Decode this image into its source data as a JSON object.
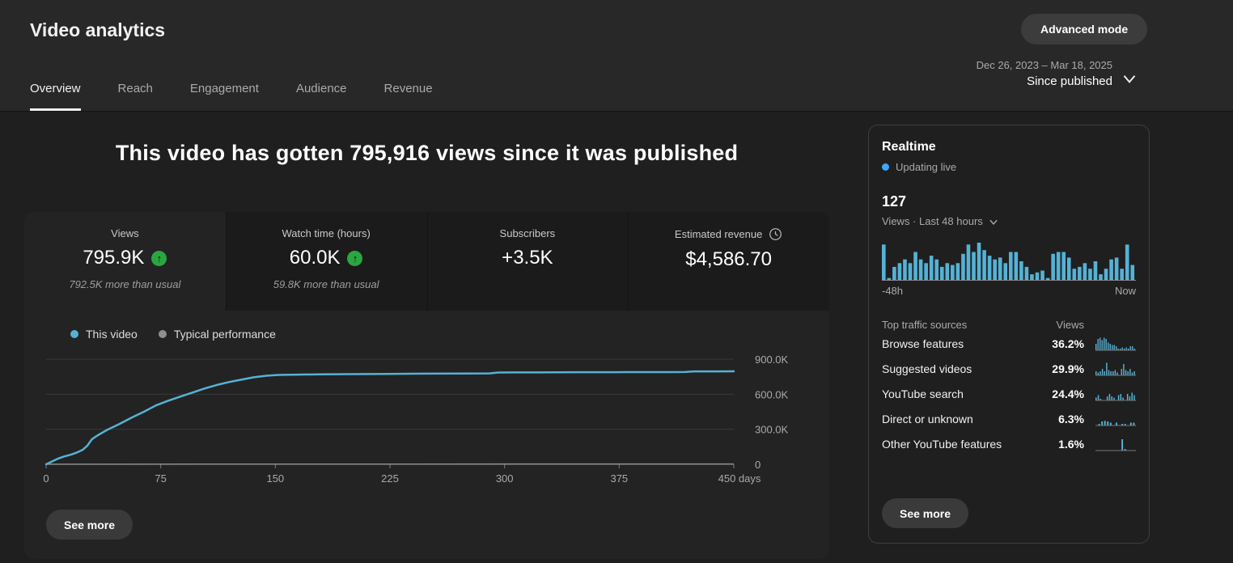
{
  "header": {
    "title": "Video analytics",
    "advanced_mode_label": "Advanced mode",
    "date_range": "Dec 26, 2023 – Mar 18, 2025",
    "date_mode": "Since published",
    "tabs": [
      {
        "label": "Overview",
        "active": true
      },
      {
        "label": "Reach",
        "active": false
      },
      {
        "label": "Engagement",
        "active": false
      },
      {
        "label": "Audience",
        "active": false
      },
      {
        "label": "Revenue",
        "active": false
      }
    ]
  },
  "headline": "This video has gotten 795,916 views since it was published",
  "metrics": {
    "cards": [
      {
        "label": "Views",
        "value": "795.9K",
        "trend": "up",
        "subtext": "792.5K more than usual",
        "selected": true
      },
      {
        "label": "Watch time (hours)",
        "value": "60.0K",
        "trend": "up",
        "subtext": "59.8K more than usual",
        "selected": false
      },
      {
        "label": "Subscribers",
        "value": "+3.5K",
        "selected": false
      },
      {
        "label": "Estimated revenue",
        "value": "$4,586.70",
        "icon": "clock-icon",
        "selected": false
      }
    ]
  },
  "legend": [
    {
      "label": "This video",
      "color": "#55b2d6"
    },
    {
      "label": "Typical performance",
      "color": "#8f8f8f"
    }
  ],
  "see_more_label": "See more",
  "realtime": {
    "title": "Realtime",
    "status": "Updating live",
    "count": "127",
    "count_caption": "Views · Last 48 hours",
    "axis": {
      "left": "-48h",
      "right": "Now"
    },
    "traffic": {
      "header": {
        "source": "Top traffic sources",
        "views": "Views"
      },
      "rows": [
        {
          "label": "Browse features",
          "value": "36.2%"
        },
        {
          "label": "Suggested videos",
          "value": "29.9%"
        },
        {
          "label": "YouTube search",
          "value": "24.4%"
        },
        {
          "label": "Direct or unknown",
          "value": "6.3%"
        },
        {
          "label": "Other YouTube features",
          "value": "1.6%"
        }
      ]
    },
    "see_more_label": "See more"
  },
  "colors": {
    "line_blue": "#55b2d6",
    "typical_gray": "#8f8f8f",
    "live_dot_blue": "#3ea6ff",
    "trend_green": "#2ba640",
    "grid": "#3a3a3a",
    "axis_baseline": "#7c7c7c",
    "axis_text": "#aaaaaa",
    "spark_baseline": "#8a8a8a"
  },
  "chart_data": [
    {
      "id": "cumulative-views",
      "type": "line",
      "title": "Cumulative views since published",
      "xlabel": "days",
      "ylabel": "views",
      "xticks": [
        0,
        75,
        150,
        225,
        300,
        375,
        450
      ],
      "xtick_labels": [
        "0",
        "75",
        "150",
        "225",
        "300",
        "375",
        "450 days"
      ],
      "yticks": [
        0,
        300,
        600,
        900
      ],
      "ytick_labels": [
        "0",
        "300.0K",
        "600.0K",
        "900.0K"
      ],
      "ylim": [
        0,
        1000
      ],
      "xlim": [
        0,
        450
      ],
      "unit": "thousand views",
      "series": [
        {
          "name": "This video",
          "x": [
            0,
            4,
            8,
            12,
            16,
            20,
            24,
            27,
            30,
            34,
            40,
            48,
            56,
            64,
            72,
            80,
            88,
            96,
            104,
            112,
            120,
            128,
            136,
            144,
            152,
            165,
            180,
            200,
            225,
            250,
            275,
            290,
            296,
            320,
            350,
            380,
            410,
            418,
            424,
            450
          ],
          "y": [
            0,
            25,
            50,
            68,
            82,
            100,
            125,
            160,
            215,
            250,
            295,
            345,
            400,
            450,
            505,
            545,
            580,
            615,
            650,
            680,
            705,
            725,
            745,
            758,
            765,
            768,
            770,
            772,
            774,
            776,
            777,
            778,
            786,
            787,
            788,
            789,
            789,
            790,
            795,
            796
          ]
        },
        {
          "name": "Typical performance",
          "x": [
            0,
            450
          ],
          "y": [
            1,
            3
          ]
        }
      ]
    },
    {
      "id": "realtime-views-48h",
      "type": "bar",
      "title": "Views · Last 48 hours",
      "xlabels": [
        "-48h",
        "Now"
      ],
      "values": [
        0.95,
        0.05,
        0.35,
        0.45,
        0.55,
        0.45,
        0.75,
        0.55,
        0.45,
        0.65,
        0.55,
        0.35,
        0.45,
        0.4,
        0.45,
        0.7,
        0.95,
        0.75,
        1.0,
        0.8,
        0.65,
        0.55,
        0.6,
        0.45,
        0.75,
        0.75,
        0.5,
        0.35,
        0.15,
        0.2,
        0.25,
        0.05,
        0.7,
        0.75,
        0.75,
        0.6,
        0.3,
        0.35,
        0.45,
        0.3,
        0.5,
        0.15,
        0.3,
        0.55,
        0.6,
        0.3,
        0.95,
        0.4
      ]
    },
    {
      "id": "traffic-source-sparklines",
      "type": "bar",
      "rows": [
        {
          "name": "Browse features",
          "values": [
            0.5,
            0.9,
            1,
            0.8,
            1,
            0.9,
            0.6,
            0.5,
            0.4,
            0.4,
            0.3,
            0.1,
            0.1,
            0.2,
            0.1,
            0.2,
            0.1,
            0.3,
            0.3,
            0.1
          ]
        },
        {
          "name": "Suggested videos",
          "values": [
            0.3,
            0.2,
            0.3,
            0.5,
            0.3,
            1,
            0.4,
            0.3,
            0.3,
            0.4,
            0.2,
            0,
            0.5,
            0.9,
            0.4,
            0.3,
            0.5,
            0.2,
            0.3
          ]
        },
        {
          "name": "YouTube search",
          "values": [
            0.2,
            0.4,
            0.1,
            0,
            0,
            0.3,
            0.5,
            0.3,
            0.2,
            0,
            0.4,
            0.5,
            0.2,
            0,
            0.5,
            0.3,
            0.6,
            0.4
          ]
        },
        {
          "name": "Direct or unknown",
          "values": [
            0,
            0.1,
            0.3,
            0.35,
            0.3,
            0.2,
            0,
            0.2,
            0,
            0.1,
            0.1,
            0,
            0.2,
            0.2
          ]
        },
        {
          "name": "Other YouTube features",
          "values": [
            0,
            0,
            0,
            0,
            0,
            0,
            0,
            0,
            0,
            0.9,
            0.1,
            0,
            0,
            0
          ]
        }
      ]
    }
  ]
}
